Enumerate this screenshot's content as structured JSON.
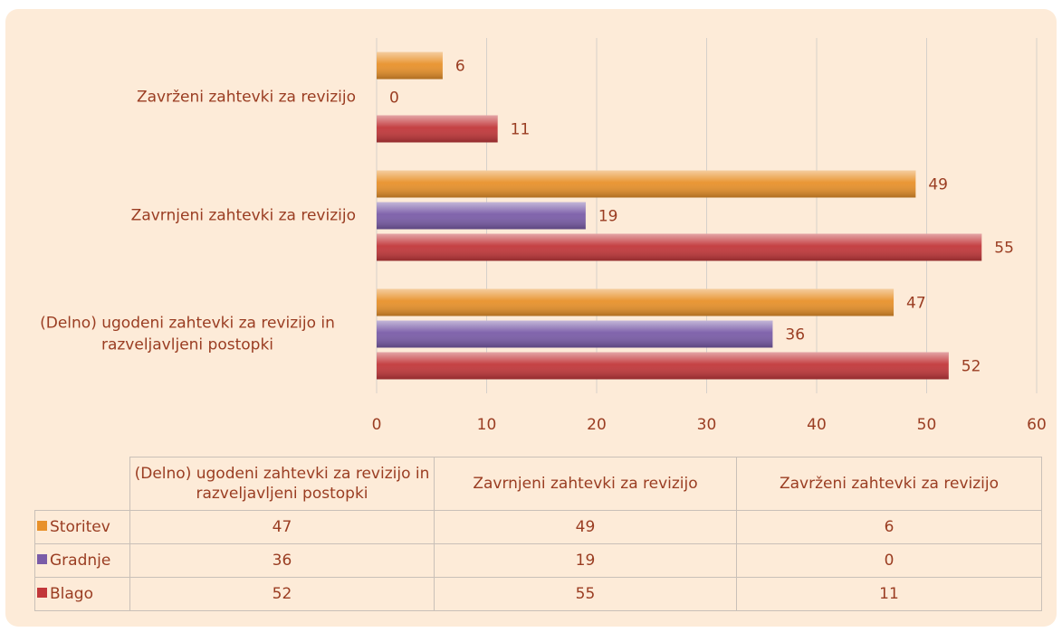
{
  "chart_data": {
    "type": "hbar",
    "categories": [
      "(Delno) ugodeni zahtevki za revizijo in razveljavljeni postopki",
      "Zavrnjeni zahtevki za revizijo",
      "Zavrženi zahtevki za revizijo"
    ],
    "series": [
      {
        "name": "Storitev",
        "color": "#e8912a",
        "values": [
          47,
          49,
          6
        ]
      },
      {
        "name": "Gradnje",
        "color": "#7a5ca8",
        "values": [
          36,
          19,
          0
        ]
      },
      {
        "name": "Blago",
        "color": "#c2373a",
        "values": [
          52,
          55,
          11
        ]
      }
    ],
    "xlim": [
      0,
      60
    ],
    "xticks": [
      0,
      10,
      20,
      30,
      40,
      50,
      60
    ],
    "grid": true,
    "data_table": true
  }
}
